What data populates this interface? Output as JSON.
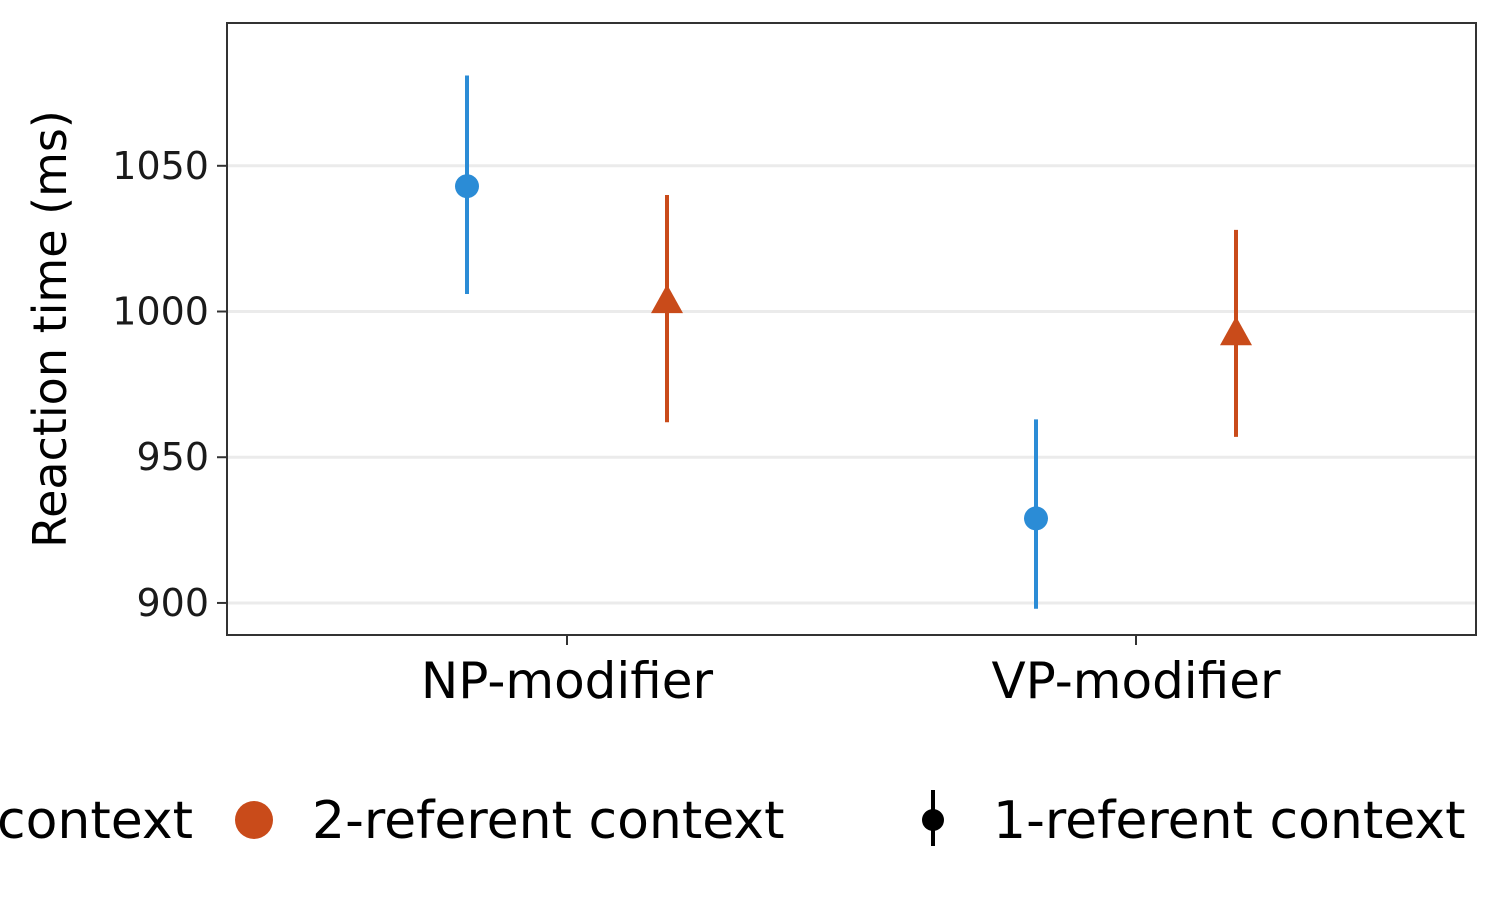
{
  "chart_data": {
    "type": "scatter",
    "ylabel": "Reaction time (ms)",
    "xlabel": "",
    "categories": [
      "NP-modifier",
      "VP-modifier"
    ],
    "ylim": [
      889,
      1099
    ],
    "yticks": [
      900,
      950,
      1000,
      1050
    ],
    "grid": "horizontal",
    "legend_position": "bottom",
    "series": [
      {
        "name": "1-referent context",
        "legend_label": "context",
        "color": "#2B8CD6",
        "marker": "circle",
        "points": [
          {
            "category": "NP-modifier",
            "y": 1043,
            "ymin": 1006,
            "ymax": 1081
          },
          {
            "category": "VP-modifier",
            "y": 929,
            "ymin": 898,
            "ymax": 963
          }
        ]
      },
      {
        "name": "2-referent context",
        "legend_label": "2-referent context",
        "color": "#C94B1A",
        "marker": "triangle",
        "points": [
          {
            "category": "NP-modifier",
            "y": 1003,
            "ymin": 962,
            "ymax": 1040
          },
          {
            "category": "VP-modifier",
            "y": 992,
            "ymin": 957,
            "ymax": 1028
          }
        ]
      }
    ],
    "extra_legend": {
      "label": "1-referent context",
      "icon": "point-with-errorbar",
      "color": "#000000"
    }
  }
}
